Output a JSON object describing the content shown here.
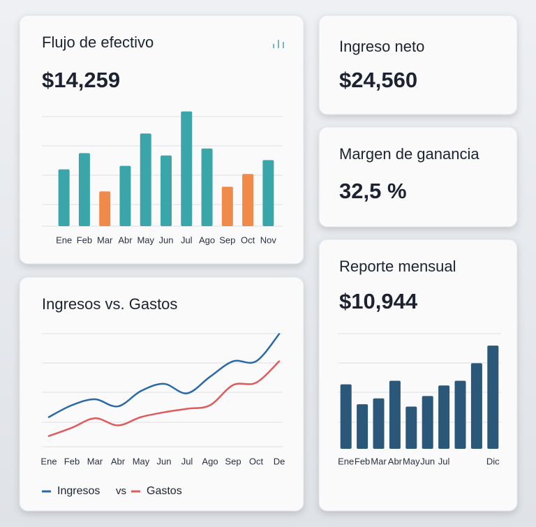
{
  "cash_flow": {
    "title": "Flujo de efectivo",
    "amount": "$14,259",
    "chart": {
      "type": "bar",
      "categories": [
        "Ene",
        "Feb",
        "Mar",
        "Abr",
        "May",
        "Jun",
        "Jul",
        "Ago",
        "Sep",
        "Oct",
        "Nov"
      ],
      "values": [
        49,
        63,
        30,
        52,
        80,
        61,
        99,
        67,
        34,
        45,
        57
      ],
      "colors": [
        "#3aa6aa",
        "#3aa6aa",
        "#f08a4b",
        "#3aa6aa",
        "#3aa6aa",
        "#3aa6aa",
        "#3aa6aa",
        "#3aa6aa",
        "#f08a4b",
        "#f08a4b",
        "#3aa6aa"
      ],
      "ylim": [
        0,
        100
      ]
    }
  },
  "net_income": {
    "title": "Ingreso neto",
    "amount": "$24,560"
  },
  "margin": {
    "title": "Margen de ganancia",
    "amount": "32,5 %"
  },
  "income_vs_expenses": {
    "title": "Ingresos vs. Gastos",
    "legend_separator": "vs",
    "chart": {
      "type": "line",
      "categories": [
        "Ene",
        "Feb",
        "Mar",
        "Abr",
        "May",
        "Jun",
        "Jul",
        "Ago",
        "Sep",
        "Oct",
        "De"
      ],
      "series": [
        {
          "name": "Ingresos",
          "color": "#2b68a6",
          "values": [
            25,
            35,
            40,
            34,
            47,
            53,
            45,
            59,
            72,
            72,
            95
          ]
        },
        {
          "name": "Gastos",
          "color": "#e05a5c",
          "values": [
            9,
            16,
            24,
            18,
            25,
            29,
            32,
            35,
            52,
            54,
            72
          ]
        }
      ],
      "ylim": [
        0,
        100
      ]
    }
  },
  "monthly_report": {
    "title": "Reporte mensual",
    "amount": "$10,944",
    "chart": {
      "type": "bar",
      "categories": [
        "Ene",
        "Feb",
        "Mar",
        "Abr",
        "May",
        "Jun",
        "Jul",
        null,
        null,
        "Dic"
      ],
      "values": [
        55,
        38,
        43,
        58,
        36,
        45,
        54,
        58,
        73,
        88
      ],
      "color": "#2b5778",
      "ylim": [
        0,
        100
      ]
    }
  }
}
